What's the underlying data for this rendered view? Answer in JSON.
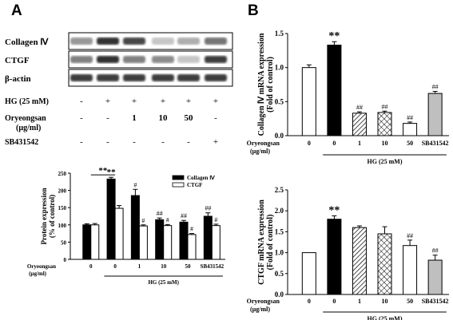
{
  "panels": {
    "A": "A",
    "B": "B"
  },
  "blot": {
    "rows": [
      "Collagen Ⅳ",
      "CTGF",
      "β-actin"
    ],
    "lanes": 6,
    "conditions": [
      {
        "label": "HG (25 mM)",
        "values": [
          "-",
          "+",
          "+",
          "+",
          "+",
          "+"
        ]
      },
      {
        "label": "Oryeongsan",
        "sublabel": "(µg/ml)",
        "values": [
          "-",
          "-",
          "1",
          "10",
          "50",
          "-"
        ]
      },
      {
        "label": "SB431542",
        "values": [
          "-",
          "-",
          "-",
          "-",
          "-",
          "+"
        ]
      }
    ],
    "intensity": {
      "Collagen Ⅳ": [
        0.45,
        0.9,
        0.8,
        0.25,
        0.35,
        0.6
      ],
      "CTGF": [
        0.55,
        0.9,
        0.55,
        0.5,
        0.25,
        0.85
      ],
      "β-actin": [
        0.85,
        0.85,
        0.85,
        0.85,
        0.85,
        0.85
      ]
    }
  },
  "chart_data": [
    {
      "id": "A-bottom",
      "type": "bar",
      "ylabel": "Protein expression",
      "ylabel2": "(% of control)",
      "ylim": [
        0,
        250
      ],
      "yticks": [
        0,
        50,
        100,
        150,
        200,
        250
      ],
      "xrow_label": "Oryeongsan",
      "xrow_unit": "(µg/ml)",
      "categories": [
        "0",
        "0",
        "1",
        "10",
        "50",
        "SB431542"
      ],
      "group_label": "HG (25 mM)",
      "series": [
        {
          "name": "Collagen Ⅳ",
          "color": "#000000",
          "values": [
            100,
            233,
            185,
            115,
            108,
            125
          ],
          "errors": [
            3,
            5,
            18,
            5,
            5,
            10
          ],
          "marks": [
            "",
            "**",
            "#",
            "##",
            "##",
            "##"
          ]
        },
        {
          "name": "CTGF",
          "color": "#ffffff",
          "values": [
            100,
            148,
            97,
            98,
            72,
            98
          ],
          "errors": [
            4,
            8,
            3,
            3,
            3,
            4
          ],
          "marks": [
            "",
            "",
            "#",
            "#",
            "#",
            "#"
          ]
        }
      ],
      "legend": "top-right",
      "bracket_mark": "**"
    },
    {
      "id": "B-top",
      "type": "bar",
      "ylabel": "Collagen Ⅳ mRNA expression",
      "ylabel2": "(Fold of control)",
      "ylim": [
        0,
        1.5
      ],
      "yticks": [
        0.0,
        0.5,
        1.0,
        1.5
      ],
      "xrow_label": "Oryeongsan",
      "xrow_unit": "(µg/ml)",
      "categories": [
        "0",
        "0",
        "1",
        "10",
        "50",
        "SB431542"
      ],
      "group_label": "HG (25 mM)",
      "values": [
        1.0,
        1.33,
        0.33,
        0.34,
        0.18,
        0.62
      ],
      "errors": [
        0.04,
        0.05,
        0.02,
        0.02,
        0.02,
        0.03
      ],
      "marks": [
        "",
        "**",
        "##",
        "##",
        "##",
        "##"
      ],
      "fills": [
        "white",
        "black",
        "hatch",
        "cross",
        "white",
        "gray"
      ]
    },
    {
      "id": "B-bottom",
      "type": "bar",
      "ylabel": "CTGF mRNA expression",
      "ylabel2": "(Fold of control)",
      "ylim": [
        0,
        2.5
      ],
      "yticks": [
        0.0,
        0.5,
        1.0,
        1.5,
        2.0,
        2.5
      ],
      "xrow_label": "Oryeongsan",
      "xrow_unit": "(µg/ml)",
      "categories": [
        "0",
        "0",
        "1",
        "10",
        "50",
        "SB431542"
      ],
      "group_label": "HG (25 mM)",
      "values": [
        1.0,
        1.8,
        1.6,
        1.45,
        1.17,
        0.82
      ],
      "errors": [
        0.0,
        0.08,
        0.04,
        0.17,
        0.13,
        0.12
      ],
      "marks": [
        "",
        "**",
        "",
        "",
        "##",
        "##"
      ],
      "fills": [
        "white",
        "black",
        "hatch",
        "cross",
        "white",
        "gray"
      ]
    }
  ]
}
